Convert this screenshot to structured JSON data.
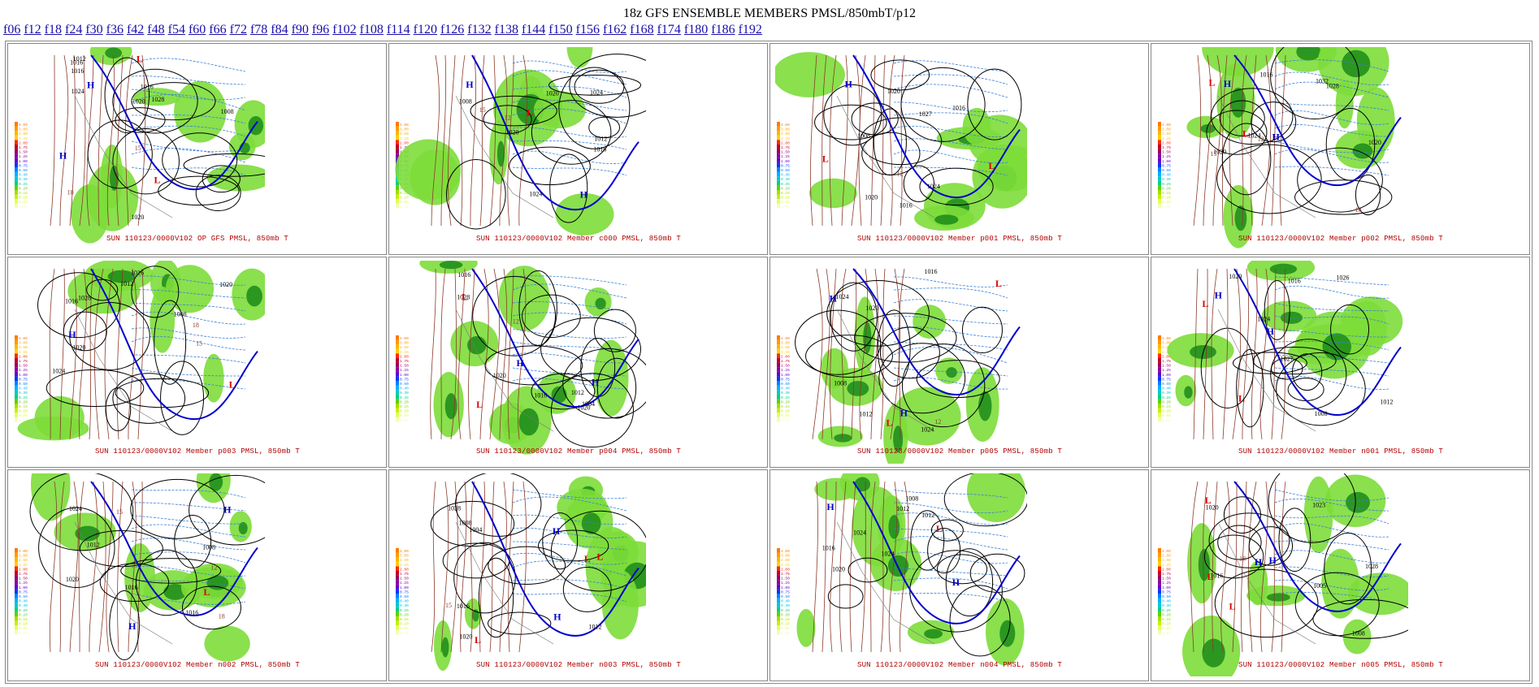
{
  "page": {
    "title": "18z GFS ENSEMBLE MEMBERS PMSL/850mbT/p12"
  },
  "forecast_links": [
    "f06",
    "f12",
    "f18",
    "f24",
    "f30",
    "f36",
    "f42",
    "f48",
    "f54",
    "f60",
    "f66",
    "f72",
    "f78",
    "f84",
    "f90",
    "f96",
    "f102",
    "f108",
    "f114",
    "f120",
    "f126",
    "f132",
    "f138",
    "f144",
    "f150",
    "f156",
    "f162",
    "f168",
    "f174",
    "f180",
    "f186",
    "f192"
  ],
  "colorbar_labels": [
    "4.00",
    "3.00",
    "2.50",
    "2.25",
    "2.00",
    "1.75",
    "1.50",
    "1.25",
    "1.00",
    "0.75",
    "0.50",
    "0.40",
    "0.30",
    "0.25",
    "0.20",
    "0.15",
    "0.10",
    "0.05",
    "0.01"
  ],
  "panels": [
    {
      "caption": "SUN 110123/0000V102  OP GFS PMSL, 850mb T",
      "labels": [
        "H",
        "1016",
        "1024",
        "1020",
        "H",
        "1012",
        "1016",
        "1028",
        "L",
        "L",
        "1008",
        "15",
        "18",
        "1016",
        "1020"
      ]
    },
    {
      "caption": "SUN 110123/0000V102  Member c000 PMSL, 850mb T",
      "labels": [
        "H",
        "1024",
        "1012",
        "1016",
        "1020",
        "H",
        "1024",
        "12",
        "15",
        "L",
        "1008",
        "1020"
      ]
    },
    {
      "caption": "SUN 110123/0000V102  Member p001 PMSL, 850mb T",
      "labels": [
        "H",
        "1027",
        "1024",
        "1020",
        "1016",
        "12",
        "L",
        "1008",
        "L",
        "1016",
        "1020"
      ]
    },
    {
      "caption": "SUN 110123/0000V102  Member p002 PMSL, 850mb T",
      "labels": [
        "H",
        "1024",
        "1016",
        "1028",
        "L",
        "1020",
        "12",
        "15",
        "18",
        "H",
        "1032",
        "1020",
        "L"
      ]
    },
    {
      "caption": "SUN 110123/0000V102  Member p003 PMSL, 850mb T",
      "labels": [
        "1028",
        "1024",
        "H",
        "1020",
        "1016",
        "15",
        "18",
        "L",
        "1008",
        "1012",
        "1020",
        "1016"
      ]
    },
    {
      "caption": "SUN 110123/0000V102  Member p004 PMSL, 850mb T",
      "labels": [
        "1028",
        "1012",
        "H",
        "1016",
        "1020",
        "12",
        "L",
        "1004",
        "H",
        "1020",
        "1016",
        "L"
      ]
    },
    {
      "caption": "SUN 110123/0000V102  Member p005 PMSL, 850mb T",
      "labels": [
        "1024",
        "H",
        "1016",
        "L",
        "1008",
        "H",
        "1024",
        "12",
        "1012",
        "1020",
        "L"
      ]
    },
    {
      "caption": "SUN 110123/0000V102  Member n001 PMSL, 850mb T",
      "labels": [
        "H",
        "1020",
        "1024",
        "H",
        "1027",
        "1026",
        "1012",
        "1016",
        "L",
        "L",
        "1008"
      ]
    },
    {
      "caption": "SUN 110123/0000V102  Member n002 PMSL, 850mb T",
      "labels": [
        "1024",
        "H",
        "1020",
        "L",
        "1008",
        "H",
        "1016",
        "15",
        "12",
        "1012",
        "18",
        "1016"
      ]
    },
    {
      "caption": "SUN 110123/0000V102  Member n003 PMSL, 850mb T",
      "labels": [
        "1028",
        "H",
        "1012",
        "L",
        "1008",
        "15",
        "L",
        "1004",
        "H",
        "1020",
        "1016",
        "L"
      ]
    },
    {
      "caption": "SUN 110123/0000V102  Member n004 PMSL, 850mb T",
      "labels": [
        "H",
        "1024",
        "1012",
        "L",
        "1008",
        "H",
        "1024",
        "1016",
        "1012",
        "1020"
      ]
    },
    {
      "caption": "SUN 110123/0000V102  Member n005 PMSL, 850mb T",
      "labels": [
        "1020",
        "1016",
        "H",
        "L",
        "1008",
        "H",
        "1023",
        "1028",
        "18",
        "L",
        "1005",
        "L"
      ]
    }
  ],
  "colors": {
    "link": "#1a0dab",
    "caption": "#b00000",
    "precip_light": "#7ddd3a",
    "precip_dark": "#1a8a1a",
    "isobar": "#000000",
    "isotherm_warm": "#8b3a2a",
    "isotherm_cold": "#3a7fd5",
    "freezing_line": "#0000cc",
    "high_label": "#0000cc",
    "low_label": "#dd0000"
  }
}
